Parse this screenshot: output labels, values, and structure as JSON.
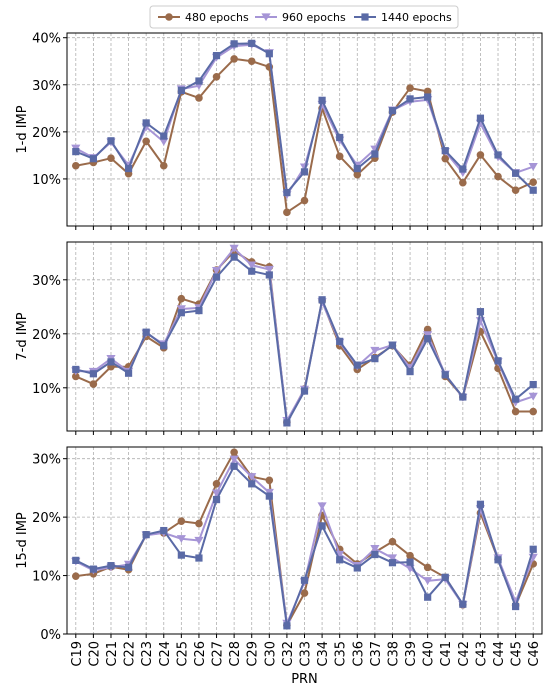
{
  "chart_data": {
    "type": "line",
    "xlabel": "PRN",
    "categories": [
      "C19",
      "C20",
      "C21",
      "C22",
      "C23",
      "C24",
      "C25",
      "C26",
      "C27",
      "C28",
      "C29",
      "C30",
      "C32",
      "C33",
      "C34",
      "C35",
      "C36",
      "C37",
      "C38",
      "C39",
      "C40",
      "C41",
      "C42",
      "C43",
      "C44",
      "C45",
      "C46"
    ],
    "legend": {
      "placement": "top-center",
      "entries": [
        {
          "label": "480 epochs",
          "color": "#9a6b4b",
          "marker": "circle"
        },
        {
          "label": "960 epochs",
          "color": "#a695d6",
          "marker": "triangle-down"
        },
        {
          "label": "1440 epochs",
          "color": "#5a6aa6",
          "marker": "square"
        }
      ]
    },
    "grid": true,
    "panels": [
      {
        "ylabel": "1-d IMP",
        "ylim": [
          0,
          41
        ],
        "yticks": [
          10,
          20,
          30,
          40
        ],
        "ytick_labels": [
          "10%",
          "20%",
          "30%",
          "40%"
        ],
        "series": [
          {
            "name": "480 epochs",
            "values": [
              12.8,
              13.5,
              14.4,
              11.1,
              18.0,
              12.8,
              28.5,
              27.2,
              31.7,
              35.5,
              35.0,
              33.8,
              2.9,
              5.4,
              25.0,
              14.8,
              10.9,
              14.4,
              24.2,
              29.3,
              28.6,
              14.3,
              9.2,
              15.1,
              10.5,
              7.6,
              9.3
            ]
          },
          {
            "name": "960 epochs",
            "values": [
              16.5,
              14.5,
              17.8,
              12.9,
              21.0,
              17.9,
              29.1,
              29.8,
              35.8,
              38.2,
              38.5,
              36.8,
              6.6,
              12.5,
              25.8,
              18.2,
              12.9,
              16.3,
              24.6,
              26.4,
              26.8,
              15.8,
              11.3,
              21.8,
              14.6,
              11.3,
              12.6
            ]
          },
          {
            "name": "1440 epochs",
            "values": [
              15.8,
              14.3,
              18.1,
              12.2,
              21.9,
              19.1,
              28.8,
              30.8,
              36.2,
              38.7,
              38.8,
              36.6,
              7.1,
              11.5,
              26.7,
              18.8,
              12.2,
              15.3,
              24.5,
              27.0,
              27.4,
              16.0,
              12.1,
              22.9,
              15.1,
              11.2,
              7.6
            ]
          }
        ]
      },
      {
        "ylabel": "7-d IMP",
        "ylim": [
          2,
          37
        ],
        "yticks": [
          10,
          20,
          30
        ],
        "ytick_labels": [
          "10%",
          "20%",
          "30%"
        ],
        "series": [
          {
            "name": "480 epochs",
            "values": [
              12.1,
              10.7,
              13.9,
              13.9,
              19.5,
              17.4,
              26.5,
              25.5,
              31.8,
              35.3,
              33.3,
              32.4,
              3.6,
              9.8,
              26.1,
              17.8,
              13.4,
              15.6,
              17.8,
              14.2,
              20.8,
              12.1,
              8.3,
              20.4,
              13.6,
              5.6,
              5.6
            ]
          },
          {
            "name": "960 epochs",
            "values": [
              13.1,
              13.0,
              15.4,
              13.0,
              20.1,
              18.1,
              24.6,
              24.8,
              31.7,
              35.8,
              32.7,
              31.9,
              3.9,
              9.7,
              25.9,
              18.4,
              14.0,
              16.9,
              17.9,
              13.7,
              19.8,
              12.5,
              8.2,
              22.4,
              14.8,
              7.3,
              8.4
            ]
          },
          {
            "name": "1440 epochs",
            "values": [
              13.4,
              12.6,
              14.8,
              12.7,
              20.3,
              17.8,
              23.9,
              24.3,
              30.5,
              34.2,
              31.6,
              30.9,
              3.5,
              9.4,
              26.3,
              18.6,
              14.2,
              15.4,
              17.9,
              13.0,
              19.1,
              12.4,
              8.3,
              24.1,
              15.0,
              7.9,
              10.6
            ]
          }
        ]
      },
      {
        "ylabel": "15-d IMP",
        "ylim": [
          0,
          32
        ],
        "yticks": [
          0,
          10,
          20,
          30
        ],
        "ytick_labels": [
          "0%",
          "10%",
          "20%",
          "30%"
        ],
        "series": [
          {
            "name": "480 epochs",
            "values": [
              9.9,
              10.3,
              11.5,
              11.0,
              17.0,
              17.3,
              19.3,
              18.9,
              25.7,
              31.1,
              26.9,
              26.3,
              1.5,
              7.0,
              20.3,
              14.5,
              12.0,
              14.0,
              15.8,
              13.4,
              11.4,
              9.7,
              5.0,
              20.7,
              12.8,
              4.9,
              12.0
            ]
          },
          {
            "name": "960 epochs",
            "values": [
              12.4,
              10.9,
              11.4,
              11.9,
              16.9,
              17.3,
              16.3,
              16.0,
              24.1,
              29.9,
              26.9,
              24.2,
              1.8,
              8.9,
              21.9,
              13.6,
              11.7,
              14.6,
              13.0,
              11.2,
              9.1,
              9.4,
              5.0,
              21.4,
              13.0,
              5.5,
              13.1
            ]
          },
          {
            "name": "1440 epochs",
            "values": [
              12.6,
              11.1,
              11.7,
              11.4,
              17.0,
              17.7,
              13.5,
              13.0,
              23.0,
              28.7,
              25.7,
              23.6,
              1.4,
              9.2,
              18.5,
              12.7,
              11.3,
              13.6,
              12.2,
              12.3,
              6.3,
              9.7,
              5.1,
              22.2,
              12.7,
              4.7,
              14.5
            ]
          }
        ]
      }
    ]
  }
}
